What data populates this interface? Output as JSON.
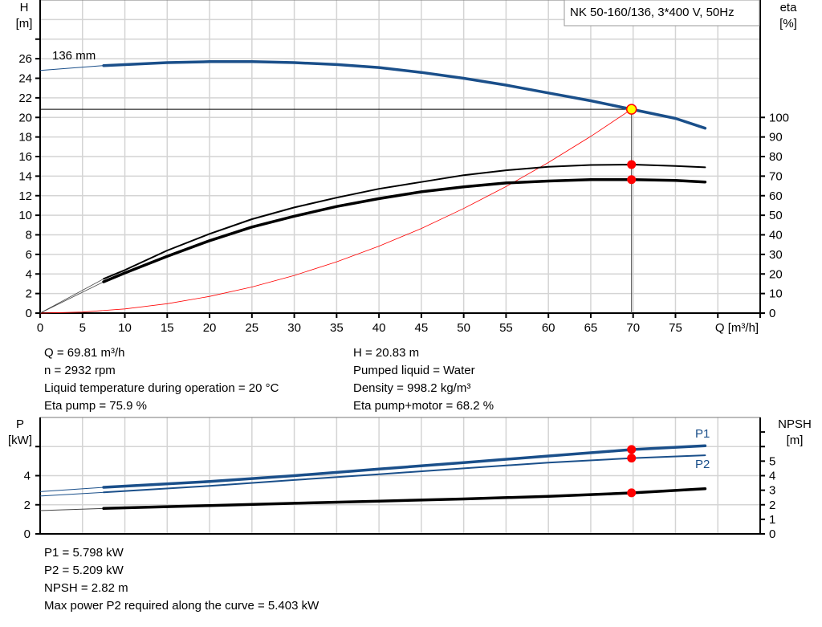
{
  "chart_data": [
    {
      "type": "line",
      "title": "NK 50-160/136, 3*400 V, 50Hz",
      "xlabel": "Q [m³/h]",
      "ylabel": "H\n[m]",
      "y2label": "eta\n[%]",
      "xlim": [
        0,
        85
      ],
      "ylim": [
        0,
        32
      ],
      "y2lim": [
        0,
        160
      ],
      "x_ticks": [
        0,
        5,
        10,
        15,
        20,
        25,
        30,
        35,
        40,
        45,
        50,
        55,
        60,
        65,
        70,
        75
      ],
      "y_ticks": [
        0,
        2,
        4,
        6,
        8,
        10,
        12,
        14,
        16,
        18,
        20,
        22,
        24,
        26
      ],
      "y2_ticks": [
        0,
        10,
        20,
        30,
        40,
        50,
        60,
        70,
        80,
        90,
        100
      ],
      "grid": true,
      "annotation": "136 mm",
      "operating_point": {
        "Q": 69.81,
        "H": 20.83
      },
      "series": [
        {
          "id": "head",
          "axis": "left",
          "color": "#1a4f8a",
          "x": [
            0,
            7.5,
            15,
            20,
            25,
            30,
            35,
            40,
            45,
            50,
            55,
            60,
            65,
            70,
            75,
            78.5
          ],
          "values": [
            24.8,
            25.3,
            25.6,
            25.7,
            25.7,
            25.6,
            25.4,
            25.1,
            24.6,
            24.0,
            23.3,
            22.5,
            21.7,
            20.8,
            19.9,
            18.9
          ]
        },
        {
          "id": "eta-pump",
          "axis": "right",
          "color": "#000000",
          "x": [
            0,
            7.5,
            10,
            15,
            20,
            25,
            30,
            35,
            40,
            45,
            50,
            55,
            60,
            65,
            70,
            75,
            78.5
          ],
          "values": [
            0,
            17.5,
            22,
            32,
            40.5,
            48,
            54,
            59,
            63.5,
            67,
            70.5,
            73,
            74.8,
            75.7,
            75.9,
            75.2,
            74.5
          ]
        },
        {
          "id": "eta-pump-motor",
          "axis": "right",
          "color": "#000000",
          "x": [
            0,
            7.5,
            10,
            15,
            20,
            25,
            30,
            35,
            40,
            45,
            50,
            55,
            60,
            65,
            70,
            75,
            78.5
          ],
          "values": [
            0,
            16,
            20.5,
            29,
            37,
            44,
            49.5,
            54.5,
            58.5,
            62,
            64.5,
            66.5,
            67.5,
            68.2,
            68.2,
            67.8,
            67
          ]
        },
        {
          "id": "system-curve",
          "axis": "left",
          "color": "#ff0000",
          "x": [
            0,
            5,
            10,
            15,
            20,
            25,
            30,
            35,
            40,
            45,
            50,
            55,
            60,
            65,
            69.81
          ],
          "values": [
            0,
            0.11,
            0.43,
            0.96,
            1.71,
            2.67,
            3.85,
            5.24,
            6.84,
            8.65,
            10.69,
            12.93,
            15.39,
            18.06,
            20.83
          ]
        }
      ]
    },
    {
      "type": "line",
      "ylabel": "P\n[kW]",
      "y2label": "NPSH\n[m]",
      "xlim": [
        0,
        85
      ],
      "ylim": [
        0,
        8
      ],
      "y2lim": [
        0,
        8
      ],
      "y_ticks": [
        0,
        2,
        4
      ],
      "y2_ticks": [
        0,
        1,
        2,
        3,
        4,
        5
      ],
      "grid": true,
      "operating_Q": 69.81,
      "series": [
        {
          "id": "p1",
          "name": "P1",
          "axis": "left",
          "color": "#1a4f8a",
          "x": [
            0,
            7.5,
            20,
            30,
            40,
            50,
            60,
            70,
            78.5
          ],
          "values": [
            2.9,
            3.2,
            3.6,
            4.0,
            4.45,
            4.9,
            5.35,
            5.8,
            6.05
          ]
        },
        {
          "id": "p2",
          "name": "P2",
          "axis": "left",
          "color": "#1a4f8a",
          "x": [
            0,
            7.5,
            20,
            30,
            40,
            50,
            60,
            70,
            78.5
          ],
          "values": [
            2.6,
            2.85,
            3.3,
            3.7,
            4.1,
            4.5,
            4.9,
            5.21,
            5.4
          ]
        },
        {
          "id": "npsh",
          "axis": "right",
          "color": "#000000",
          "x": [
            0,
            7.5,
            20,
            30,
            40,
            50,
            60,
            70,
            78.5
          ],
          "values": [
            1.6,
            1.75,
            1.95,
            2.1,
            2.25,
            2.4,
            2.58,
            2.82,
            3.1
          ]
        }
      ]
    }
  ],
  "info_top_left": [
    "Q = 69.81 m³/h",
    "n = 2932 rpm",
    "Liquid temperature during operation = 20 °C",
    "Eta pump = 75.9 %"
  ],
  "info_top_right": [
    "H = 20.83 m",
    "Pumped liquid = Water",
    "Density = 998.2 kg/m³",
    "Eta pump+motor = 68.2 %"
  ],
  "info_bottom": [
    "P1 = 5.798 kW",
    "P2 = 5.209 kW",
    "NPSH = 2.82 m",
    "Max power P2 required along the curve = 5.403 kW"
  ]
}
